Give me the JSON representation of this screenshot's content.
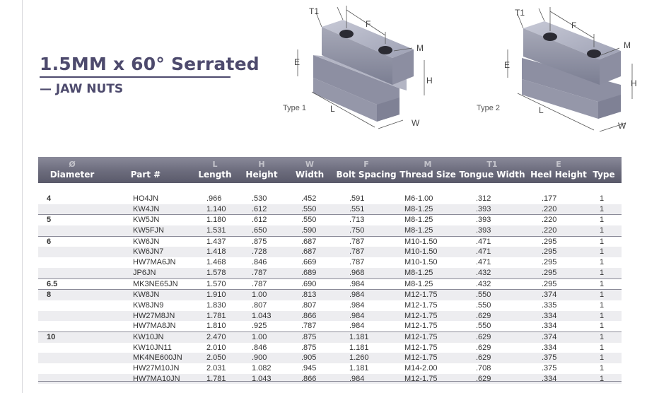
{
  "title": "1.5MM x 60° Serrated",
  "subtitle": "— JAW NUTS",
  "figures": [
    {
      "type_label": "Type 1",
      "dims": {
        "t1": "T1",
        "f": "F",
        "m": "M",
        "e": "E",
        "h": "H",
        "l": "L",
        "w": "W"
      }
    },
    {
      "type_label": "Type 2",
      "dims": {
        "t1": "T1",
        "f": "F",
        "m": "M",
        "e": "E",
        "h": "H",
        "l": "L",
        "w": "W"
      }
    }
  ],
  "columns": [
    {
      "symbol": "Ø",
      "label": "Diameter"
    },
    {
      "symbol": "",
      "label": "Part #"
    },
    {
      "symbol": "L",
      "label": "Length"
    },
    {
      "symbol": "H",
      "label": "Height"
    },
    {
      "symbol": "W",
      "label": "Width"
    },
    {
      "symbol": "F",
      "label": "Bolt Spacing"
    },
    {
      "symbol": "M",
      "label": "Thread Size"
    },
    {
      "symbol": "T1",
      "label": "Tongue Width"
    },
    {
      "symbol": "E",
      "label": "Heel Height"
    },
    {
      "symbol": "",
      "label": "Type"
    }
  ],
  "rows": [
    {
      "diameter": "4",
      "part": "HO4JN",
      "length": ".966",
      "height": ".530",
      "width": ".452",
      "bolt": ".591",
      "thread": "M6-1.00",
      "tongue": ".312",
      "heel": ".177",
      "type": "1"
    },
    {
      "diameter": "",
      "part": "KW4JN",
      "length": "1.140",
      "height": ".612",
      "width": ".550",
      "bolt": ".551",
      "thread": "M8-1.25",
      "tongue": ".393",
      "heel": ".220",
      "type": "1"
    },
    {
      "diameter": "5",
      "part": "KW5JN",
      "length": "1.180",
      "height": ".612",
      "width": ".550",
      "bolt": ".713",
      "thread": "M8-1.25",
      "tongue": ".393",
      "heel": ".220",
      "type": "1"
    },
    {
      "diameter": "",
      "part": "KW5FJN",
      "length": "1.531",
      "height": ".650",
      "width": ".590",
      "bolt": ".750",
      "thread": "M8-1.25",
      "tongue": ".393",
      "heel": ".220",
      "type": "1"
    },
    {
      "diameter": "6",
      "part": "KW6JN",
      "length": "1.437",
      "height": ".875",
      "width": ".687",
      "bolt": ".787",
      "thread": "M10-1.50",
      "tongue": ".471",
      "heel": ".295",
      "type": "1"
    },
    {
      "diameter": "",
      "part": "KW6JN7",
      "length": "1.418",
      "height": ".728",
      "width": ".687",
      "bolt": ".787",
      "thread": "M10-1.50",
      "tongue": ".471",
      "heel": ".295",
      "type": "1"
    },
    {
      "diameter": "",
      "part": "HW7MA6JN",
      "length": "1.468",
      "height": ".846",
      "width": ".669",
      "bolt": ".787",
      "thread": "M10-1.50",
      "tongue": ".471",
      "heel": ".295",
      "type": "1"
    },
    {
      "diameter": "",
      "part": "JP6JN",
      "length": "1.578",
      "height": ".787",
      "width": ".689",
      "bolt": ".968",
      "thread": "M8-1.25",
      "tongue": ".432",
      "heel": ".295",
      "type": "1"
    },
    {
      "diameter": "6.5",
      "part": "MK3NE65JN",
      "length": "1.570",
      "height": ".787",
      "width": ".690",
      "bolt": ".984",
      "thread": "M8-1.25",
      "tongue": ".432",
      "heel": ".295",
      "type": "1"
    },
    {
      "diameter": "8",
      "part": "KW8JN",
      "length": "1.910",
      "height": "1.00",
      "width": ".813",
      "bolt": ".984",
      "thread": "M12-1.75",
      "tongue": ".550",
      "heel": ".374",
      "type": "1"
    },
    {
      "diameter": "",
      "part": "KW8JN9",
      "length": "1.830",
      "height": ".807",
      "width": ".807",
      "bolt": ".984",
      "thread": "M12-1.75",
      "tongue": ".550",
      "heel": ".335",
      "type": "1"
    },
    {
      "diameter": "",
      "part": "HW27M8JN",
      "length": "1.781",
      "height": "1.043",
      "width": ".866",
      "bolt": ".984",
      "thread": "M12-1.75",
      "tongue": ".629",
      "heel": ".334",
      "type": "1"
    },
    {
      "diameter": "",
      "part": "HW7MA8JN",
      "length": "1.810",
      "height": ".925",
      "width": ".787",
      "bolt": ".984",
      "thread": "M12-1.75",
      "tongue": ".550",
      "heel": ".334",
      "type": "1"
    },
    {
      "diameter": "10",
      "part": "KW10JN",
      "length": "2.470",
      "height": "1.00",
      "width": ".875",
      "bolt": "1.181",
      "thread": "M12-1.75",
      "tongue": ".629",
      "heel": ".374",
      "type": "1"
    },
    {
      "diameter": "",
      "part": "KW10JN11",
      "length": "2.010",
      "height": ".846",
      "width": ".875",
      "bolt": "1.181",
      "thread": "M12-1.75",
      "tongue": ".629",
      "heel": ".334",
      "type": "1"
    },
    {
      "diameter": "",
      "part": "MK4NE600JN",
      "length": "2.050",
      "height": ".900",
      "width": ".905",
      "bolt": "1.260",
      "thread": "M12-1.75",
      "tongue": ".629",
      "heel": ".375",
      "type": "1"
    },
    {
      "diameter": "",
      "part": "HW27M10JN",
      "length": "2.031",
      "height": "1.082",
      "width": ".945",
      "bolt": "1.181",
      "thread": "M14-2.00",
      "tongue": ".708",
      "heel": ".375",
      "type": "1"
    },
    {
      "diameter": "",
      "part": "HW7MA10JN",
      "length": "1.781",
      "height": "1.043",
      "width": ".866",
      "bolt": ".984",
      "thread": "M12-1.75",
      "tongue": ".629",
      "heel": ".334",
      "type": "1"
    }
  ]
}
